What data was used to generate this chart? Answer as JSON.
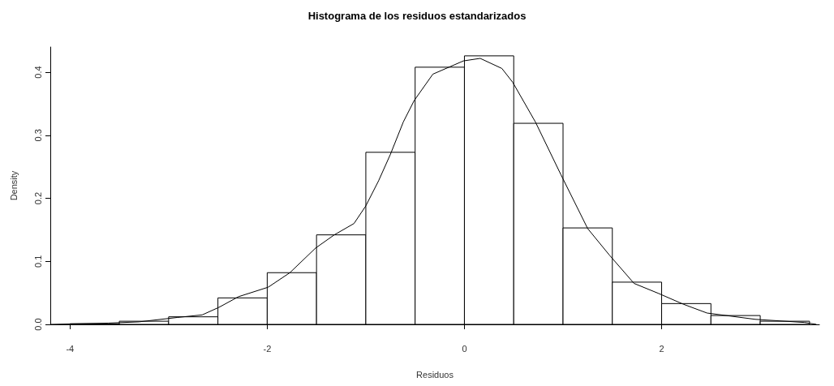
{
  "chart_data": {
    "type": "histogram",
    "title": "Histograma de los residuos estandarizados",
    "xlabel": "Residuos",
    "ylabel": "Density",
    "bins": [
      -4,
      -3.5,
      -3,
      -2.5,
      -2,
      -1.5,
      -1,
      -0.5,
      0,
      0.5,
      1,
      1.5,
      2,
      2.5,
      3,
      3.5
    ],
    "values": [
      0.001,
      0.005,
      0.012,
      0.042,
      0.082,
      0.142,
      0.273,
      0.408,
      0.426,
      0.319,
      0.153,
      0.067,
      0.033,
      0.014,
      0.005
    ],
    "color": "#ffffff",
    "series": [
      {
        "type": "line",
        "color": "#000000",
        "x": [
          -4.2,
          -3.61,
          -3.3,
          -2.91,
          -2.66,
          -2.49,
          -2.29,
          -1.99,
          -1.77,
          -1.51,
          -1.32,
          -1.12,
          -1.0,
          -0.87,
          -0.75,
          -0.62,
          -0.51,
          -0.32,
          -0.01,
          0.16,
          0.38,
          0.49,
          0.72,
          0.98,
          1.25,
          1.47,
          1.72,
          1.97,
          2.22,
          2.46,
          2.95,
          3.45,
          3.57
        ],
        "values": [
          0.0,
          0.002,
          0.004,
          0.011,
          0.015,
          0.027,
          0.044,
          0.059,
          0.082,
          0.121,
          0.142,
          0.16,
          0.188,
          0.228,
          0.27,
          0.321,
          0.355,
          0.397,
          0.418,
          0.422,
          0.406,
          0.384,
          0.321,
          0.237,
          0.152,
          0.11,
          0.065,
          0.049,
          0.032,
          0.018,
          0.008,
          0.003,
          0.0
        ]
      }
    ],
    "marker": "none",
    "line_style": "solid",
    "grid": false,
    "xlim": [
      -4.2,
      3.6
    ],
    "xticks": [
      -4,
      -2,
      0,
      2
    ],
    "ylim": [
      0,
      0.44
    ],
    "yticks": [
      {
        "value": 0,
        "label": "0.0"
      },
      0.1,
      0.2,
      0.3,
      0.4
    ]
  }
}
